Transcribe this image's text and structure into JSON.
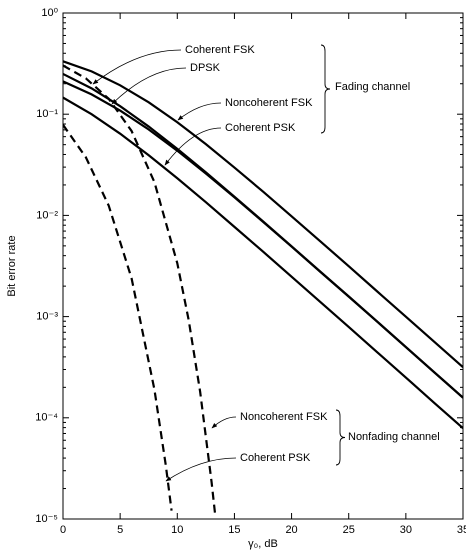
{
  "chart_data": {
    "type": "line",
    "xlabel": "γ₀, dB",
    "ylabel": "Bit error rate",
    "xlim": [
      0,
      35
    ],
    "ylim": [
      1e-05,
      1
    ],
    "log_y": true,
    "color": "#000000",
    "xticks": [
      0,
      5,
      10,
      15,
      20,
      25,
      30,
      35
    ],
    "yticks": [
      {
        "value": 1,
        "label": "10⁰"
      },
      {
        "value": 0.1,
        "label": "10⁻¹"
      },
      {
        "value": 0.01,
        "label": "10⁻²"
      },
      {
        "value": 0.001,
        "label": "10⁻³"
      },
      {
        "value": 0.0001,
        "label": "10⁻⁴"
      },
      {
        "value": 1e-05,
        "label": "10⁻⁵"
      }
    ],
    "groups": [
      {
        "label": "Fading channel",
        "dashed": false,
        "series": [
          {
            "name": "Coherent FSK",
            "x": [
              0,
              2.5,
              5,
              7.5,
              10,
              12.5,
              15,
              17.5,
              20,
              22.5,
              25,
              27.5,
              30,
              32.5,
              35
            ],
            "values": [
              0.211,
              0.157,
              0.1087,
              0.0706,
              0.0436,
              0.0259,
              0.0151,
              0.00865,
              0.00492,
              0.00278,
              0.00158,
              0.00089,
              0.0005,
              0.000281,
              0.000158
            ]
          },
          {
            "name": "DPSK",
            "x": [
              0,
              2.5,
              5,
              7.5,
              10,
              12.5,
              15,
              17.5,
              20,
              22.5,
              25,
              27.5,
              30,
              32.5,
              35
            ],
            "values": [
              0.25,
              0.18,
              0.12,
              0.0755,
              0.0455,
              0.0266,
              0.0153,
              0.00873,
              0.00495,
              0.00279,
              0.00158,
              0.00089,
              0.0005,
              0.000281,
              0.000158
            ]
          },
          {
            "name": "Noncoherent FSK",
            "x": [
              0,
              2.5,
              5,
              7.5,
              10,
              12.5,
              15,
              17.5,
              20,
              22.5,
              25,
              27.5,
              30,
              32.5,
              35
            ],
            "values": [
              0.333,
              0.265,
              0.193,
              0.131,
              0.0833,
              0.0506,
              0.0297,
              0.0172,
              0.0098,
              0.00556,
              0.00315,
              0.00177,
              0.000998,
              0.000562,
              0.000316
            ]
          },
          {
            "name": "Coherent PSK",
            "x": [
              0,
              2.5,
              5,
              7.5,
              10,
              12.5,
              15,
              17.5,
              20,
              22.5,
              25,
              27.5,
              30,
              32.5,
              35
            ],
            "values": [
              0.146,
              0.1,
              0.0642,
              0.0393,
              0.0233,
              0.0135,
              0.0077,
              0.00439,
              0.00248,
              0.0014,
              0.00079,
              0.000444,
              0.00025,
              0.00014,
              7.9e-05
            ]
          }
        ]
      },
      {
        "label": "Nonfading channel",
        "dashed": true,
        "series": [
          {
            "name": "Noncoherent FSK",
            "x": [
              0,
              2,
              4,
              6,
              8,
              10,
              11,
              12,
              13,
              13.3
            ],
            "values": [
              0.303,
              0.226,
              0.142,
              0.0683,
              0.0213,
              0.00337,
              0.00092,
              0.000181,
              2.32e-05,
              1.14e-05
            ]
          },
          {
            "name": "Coherent PSK",
            "x": [
              0,
              2,
              4,
              6,
              8,
              9,
              9.5
            ],
            "values": [
              0.0786,
              0.0375,
              0.0125,
              0.00239,
              0.00019,
              3.36e-05,
              1.21e-05
            ]
          }
        ]
      }
    ]
  }
}
